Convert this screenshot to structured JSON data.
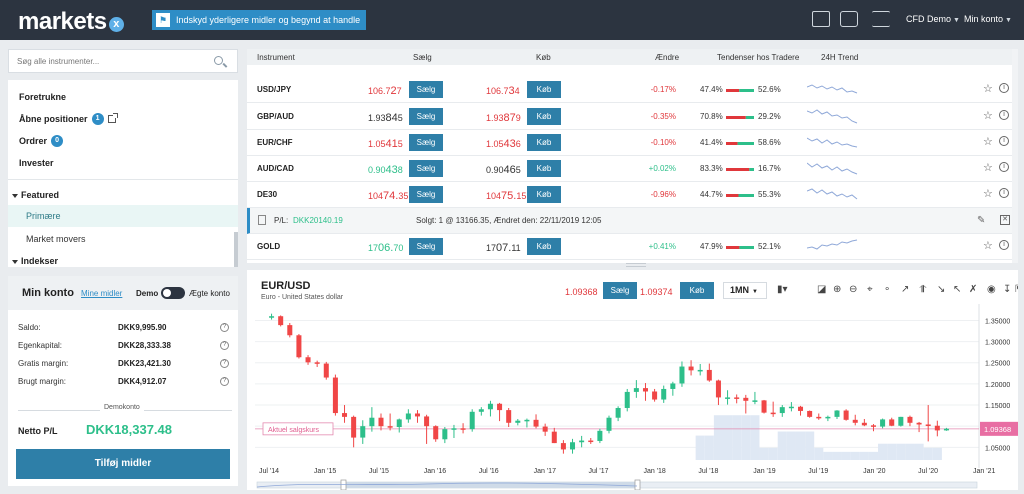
{
  "header": {
    "logo_text": "markets",
    "logo_x": "x",
    "promo_text": "Indskyd yderligere midler og begynd at handle",
    "account_menu": "CFD Demo",
    "user_menu": "Min konto"
  },
  "sidebar": {
    "search_placeholder": "Søg alle instrumenter...",
    "items": [
      {
        "label": "Foretrukne"
      },
      {
        "label": "Åbne positioner",
        "badge": "1"
      },
      {
        "label": "Ordrer",
        "badge": "0"
      },
      {
        "label": "Invester"
      }
    ],
    "groups": [
      {
        "label": "Featured",
        "children": [
          "Primære",
          "Market movers"
        ]
      },
      {
        "label": "Indekser"
      }
    ]
  },
  "account": {
    "title": "Min konto",
    "link": "Mine midler",
    "demo_label": "Demo",
    "real_label": "Ægte konto",
    "rows": [
      {
        "label": "Saldo:",
        "value": "DKK9,995.90"
      },
      {
        "label": "Egenkapital:",
        "value": "DKK28,333.38"
      },
      {
        "label": "Gratis margin:",
        "value": "DKK23,421.30"
      },
      {
        "label": "Brugt margin:",
        "value": "DKK4,912.07"
      }
    ],
    "section_label": "Demokonto",
    "pl_label": "Netto P/L",
    "pl_value": "DKK18,337.48",
    "add_button": "Tilføj midler"
  },
  "table": {
    "headers": {
      "instrument": "Instrument",
      "sell": "Sælg",
      "buy": "Køb",
      "change": "Ændre",
      "sentiment": "Tendenser hos Tradere",
      "trend": "24H Trend"
    },
    "sell_label": "Sælg",
    "buy_label": "Køb",
    "rows": [
      {
        "name": "USD/JPY",
        "sell_a": "106.7",
        "sell_b": "2",
        "sell_c": "7",
        "buy_a": "106.7",
        "buy_b": "3",
        "buy_c": "4",
        "sell_color": "red",
        "buy_color": "red",
        "change": "-0.17%",
        "sell_pct": "47.4%",
        "buy_pct": "52.6%"
      },
      {
        "name": "GBP/AUD",
        "sell_a": "1.93",
        "sell_b": "84",
        "sell_c": "5",
        "buy_a": "1.93",
        "buy_b": "87",
        "buy_c": "9",
        "sell_color": "dark",
        "buy_color": "red",
        "change": "-0.35%",
        "sell_pct": "70.8%",
        "buy_pct": "29.2%"
      },
      {
        "name": "EUR/CHF",
        "sell_a": "1.05",
        "sell_b": "41",
        "sell_c": "5",
        "buy_a": "1.05",
        "buy_b": "43",
        "buy_c": "6",
        "sell_color": "red",
        "buy_color": "red",
        "change": "-0.10%",
        "sell_pct": "41.4%",
        "buy_pct": "58.6%"
      },
      {
        "name": "AUD/CAD",
        "sell_a": "0.90",
        "sell_b": "43",
        "sell_c": "8",
        "buy_a": "0.90",
        "buy_b": "46",
        "buy_c": "5",
        "sell_color": "green",
        "buy_color": "dark",
        "change": "+0.02%",
        "sell_pct": "83.3%",
        "buy_pct": "16.7%"
      },
      {
        "name": "DE30",
        "sell_a": "104",
        "sell_b": "74.",
        "sell_c": "35",
        "buy_a": "104",
        "buy_b": "75.",
        "buy_c": "15",
        "sell_color": "red",
        "buy_color": "red",
        "change": "-0.96%",
        "sell_pct": "44.7%",
        "buy_pct": "55.3%"
      }
    ],
    "position": {
      "prefix": "P/L:",
      "pl": "DKK20140.19",
      "detail": "Solgt: 1 @ 13166.35, Ændret den: 22/11/2019 12:05"
    },
    "gold_row": {
      "name": "GOLD",
      "sell_a": "17",
      "sell_b": "06.",
      "sell_c": "70",
      "buy_a": "17",
      "buy_b": "07.",
      "buy_c": "11",
      "sell_color": "green",
      "buy_color": "dark",
      "change": "+0.41%",
      "sell_pct": "47.9%",
      "buy_pct": "52.1%"
    }
  },
  "chart_panel": {
    "symbol": "EUR/USD",
    "description": "Euro - United States dollar",
    "sell_price": "1.09368",
    "buy_price": "1.09374",
    "sell_label": "Sælg",
    "buy_label": "Køb",
    "timeframe": "1MN",
    "price_line_label": "Aktuel salgskurs"
  },
  "chart_data": {
    "type": "candlestick",
    "title": "EUR/USD",
    "timeframe": "1MN",
    "ylim": [
      1.02,
      1.37
    ],
    "yticks": [
      1.35,
      1.3,
      1.25,
      1.2,
      1.15,
      1.1,
      1.05
    ],
    "ytick_labels": [
      "1.35000",
      "1.30000",
      "1.25000",
      "1.20000",
      "1.15000",
      "1.10000",
      "1.05000"
    ],
    "xtick_labels": [
      "Jul '14",
      "Jan '15",
      "Jul '15",
      "Jan '16",
      "Jul '16",
      "Jan '17",
      "Jul '17",
      "Jan '18",
      "Jul '18",
      "Jan '19",
      "Jul '19",
      "Jan '20",
      "Jul '20",
      "Jan '21"
    ],
    "current_price": 1.09368,
    "current_price_label": "1.09368",
    "candles": [
      [
        1.357,
        1.366,
        1.352,
        1.36
      ],
      [
        1.36,
        1.362,
        1.336,
        1.339
      ],
      [
        1.339,
        1.344,
        1.31,
        1.315
      ],
      [
        1.315,
        1.318,
        1.26,
        1.263
      ],
      [
        1.263,
        1.268,
        1.245,
        1.251
      ],
      [
        1.251,
        1.255,
        1.24,
        1.248
      ],
      [
        1.248,
        1.252,
        1.21,
        1.215
      ],
      [
        1.215,
        1.222,
        1.125,
        1.131
      ],
      [
        1.131,
        1.15,
        1.108,
        1.122
      ],
      [
        1.122,
        1.125,
        1.05,
        1.073
      ],
      [
        1.073,
        1.114,
        1.058,
        1.1
      ],
      [
        1.1,
        1.145,
        1.087,
        1.12
      ],
      [
        1.12,
        1.13,
        1.09,
        1.1
      ],
      [
        1.1,
        1.13,
        1.09,
        1.098
      ],
      [
        1.098,
        1.118,
        1.085,
        1.116
      ],
      [
        1.116,
        1.14,
        1.108,
        1.13
      ],
      [
        1.13,
        1.138,
        1.108,
        1.123
      ],
      [
        1.123,
        1.127,
        1.058,
        1.1
      ],
      [
        1.1,
        1.102,
        1.063,
        1.069
      ],
      [
        1.069,
        1.098,
        1.06,
        1.093
      ],
      [
        1.093,
        1.103,
        1.072,
        1.095
      ],
      [
        1.095,
        1.107,
        1.083,
        1.093
      ],
      [
        1.093,
        1.14,
        1.087,
        1.134
      ],
      [
        1.134,
        1.145,
        1.125,
        1.14
      ],
      [
        1.14,
        1.16,
        1.123,
        1.153
      ],
      [
        1.153,
        1.155,
        1.112,
        1.138
      ],
      [
        1.138,
        1.143,
        1.098,
        1.108
      ],
      [
        1.108,
        1.117,
        1.102,
        1.113
      ],
      [
        1.113,
        1.118,
        1.097,
        1.115
      ],
      [
        1.115,
        1.128,
        1.095,
        1.099
      ],
      [
        1.099,
        1.106,
        1.077,
        1.087
      ],
      [
        1.087,
        1.096,
        1.06,
        1.06
      ],
      [
        1.06,
        1.067,
        1.035,
        1.045
      ],
      [
        1.045,
        1.07,
        1.035,
        1.062
      ],
      [
        1.062,
        1.077,
        1.05,
        1.066
      ],
      [
        1.066,
        1.072,
        1.058,
        1.065
      ],
      [
        1.065,
        1.094,
        1.06,
        1.089
      ],
      [
        1.089,
        1.125,
        1.083,
        1.12
      ],
      [
        1.12,
        1.147,
        1.112,
        1.143
      ],
      [
        1.143,
        1.188,
        1.135,
        1.181
      ],
      [
        1.181,
        1.209,
        1.167,
        1.19
      ],
      [
        1.19,
        1.202,
        1.16,
        1.182
      ],
      [
        1.182,
        1.188,
        1.158,
        1.163
      ],
      [
        1.163,
        1.196,
        1.155,
        1.188
      ],
      [
        1.188,
        1.205,
        1.172,
        1.201
      ],
      [
        1.201,
        1.253,
        1.193,
        1.241
      ],
      [
        1.241,
        1.256,
        1.22,
        1.232
      ],
      [
        1.232,
        1.247,
        1.22,
        1.233
      ],
      [
        1.233,
        1.248,
        1.205,
        1.208
      ],
      [
        1.208,
        1.21,
        1.15,
        1.168
      ],
      [
        1.168,
        1.185,
        1.151,
        1.168
      ],
      [
        1.168,
        1.175,
        1.154,
        1.167
      ],
      [
        1.167,
        1.174,
        1.13,
        1.16
      ],
      [
        1.16,
        1.181,
        1.152,
        1.161
      ],
      [
        1.161,
        1.162,
        1.13,
        1.132
      ],
      [
        1.132,
        1.158,
        1.122,
        1.131
      ],
      [
        1.131,
        1.15,
        1.122,
        1.145
      ],
      [
        1.145,
        1.157,
        1.135,
        1.146
      ],
      [
        1.146,
        1.148,
        1.125,
        1.136
      ],
      [
        1.136,
        1.137,
        1.12,
        1.122
      ],
      [
        1.122,
        1.13,
        1.115,
        1.121
      ],
      [
        1.121,
        1.125,
        1.112,
        1.122
      ],
      [
        1.122,
        1.138,
        1.117,
        1.137
      ],
      [
        1.137,
        1.14,
        1.113,
        1.115
      ],
      [
        1.115,
        1.127,
        1.102,
        1.108
      ],
      [
        1.108,
        1.117,
        1.1,
        1.102
      ],
      [
        1.102,
        1.105,
        1.088,
        1.099
      ],
      [
        1.099,
        1.118,
        1.095,
        1.116
      ],
      [
        1.116,
        1.12,
        1.1,
        1.101
      ],
      [
        1.101,
        1.122,
        1.099,
        1.122
      ],
      [
        1.122,
        1.125,
        1.1,
        1.108
      ],
      [
        1.108,
        1.11,
        1.086,
        1.104
      ],
      [
        1.104,
        1.15,
        1.064,
        1.101
      ],
      [
        1.101,
        1.113,
        1.076,
        1.09
      ],
      [
        1.09,
        1.096,
        1.089,
        1.094
      ]
    ],
    "volume_note": "shaded volume histogram behind candles"
  }
}
